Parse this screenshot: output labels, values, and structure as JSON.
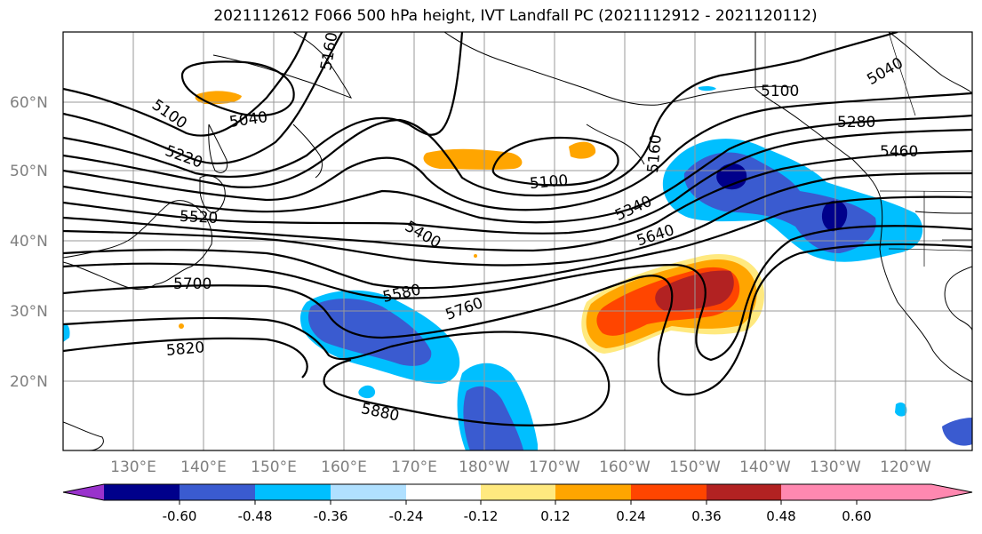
{
  "title": "2021112612 F066 500 hPa height, IVT Landfall PC (2021112912 - 2021120112)",
  "lat_labels": [
    "60°N",
    "50°N",
    "40°N",
    "30°N",
    "20°N"
  ],
  "lon_labels": [
    "130°E",
    "140°E",
    "150°E",
    "160°E",
    "170°E",
    "180°W",
    "170°W",
    "160°W",
    "150°W",
    "140°W",
    "130°W",
    "120°W"
  ],
  "contour_labels": [
    "5100",
    "5040",
    "5220",
    "5520",
    "5700",
    "5820",
    "5160",
    "5100",
    "5400",
    "5580",
    "5760",
    "5880",
    "5340",
    "5160",
    "5640",
    "5100",
    "5280",
    "5460",
    "5040"
  ],
  "colorbar": {
    "colors": [
      "#9932cc",
      "#00008b",
      "#3a5bd0",
      "#00bfff",
      "#b0e0ff",
      "#ffffff",
      "#ffe97f",
      "#ffa500",
      "#ff4500",
      "#b22222",
      "#ff88b0"
    ],
    "tick_labels": [
      "-0.60",
      "-0.48",
      "-0.36",
      "-0.24",
      "-0.12",
      "0.12",
      "0.24",
      "0.36",
      "0.48",
      "0.60"
    ]
  }
}
